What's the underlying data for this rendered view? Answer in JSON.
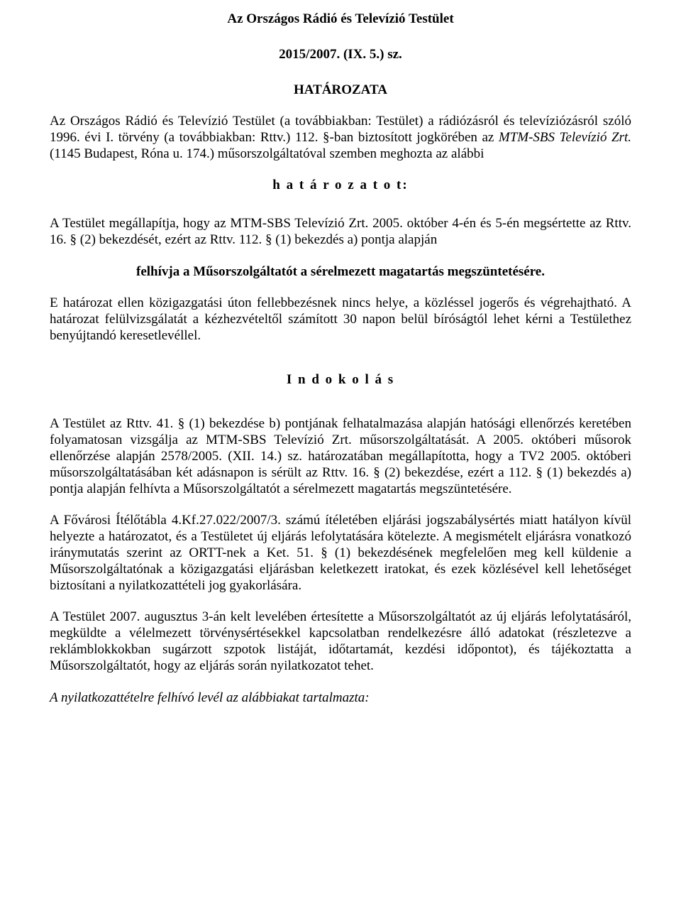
{
  "document": {
    "title": "Az Országos Rádió és Televízió Testület",
    "subtitle": "2015/2007. (IX. 5.) sz.",
    "hatarozata": "HATÁROZATA",
    "para1_part1": "Az Országos Rádió és Televízió Testület (a továbbiakban: Testület) a rádiózásról és televíziózásról szóló 1996. évi I. törvény (a továbbiakban: Rttv.) 112. §-ban biztosított jogkörében az ",
    "para1_italic": "MTM-SBS Televízió Zrt.",
    "para1_part2": " (1145 Budapest, Róna u. 174.) műsorszolgáltatóval szemben meghozta az alábbi",
    "hatarozatot": "h a t á r o z a t o t:",
    "para2": "A Testület megállapítja, hogy az MTM-SBS Televízió Zrt. 2005. október 4-én és 5-én megsértette az Rttv. 16. § (2) bekezdését, ezért az Rttv. 112. § (1) bekezdés a) pontja alapján",
    "felhivja": "felhívja a Műsorszolgáltatót a sérelmezett magatartás megszüntetésére.",
    "para3": "E határozat ellen közigazgatási úton fellebbezésnek nincs helye, a közléssel jogerős és végrehajtható. A határozat felülvizsgálatát a kézhezvételtől számított 30 napon belül bíróságtól lehet kérni a Testülethez benyújtandó keresetlevéllel.",
    "indokolas": "I n d o k o l á s",
    "para4": "A Testület az Rttv. 41. § (1) bekezdése b) pontjának felhatalmazása alapján hatósági ellenőrzés keretében folyamatosan vizsgálja az MTM-SBS Televízió Zrt. műsorszolgáltatását. A 2005. októberi műsorok ellenőrzése alapján 2578/2005. (XII. 14.) sz. határozatában megállapította, hogy a TV2 2005. októberi műsorszolgáltatásában két adásnapon is sérült az Rttv. 16. § (2) bekezdése, ezért a 112. § (1) bekezdés a) pontja alapján felhívta a Műsorszolgáltatót a sérelmezett magatartás megszüntetésére.",
    "para5": "A Fővárosi Ítélőtábla 4.Kf.27.022/2007/3. számú ítéletében eljárási jogszabálysértés miatt hatályon kívül helyezte a határozatot, és a Testületet új eljárás lefolytatására kötelezte. A megismételt eljárásra vonatkozó iránymutatás szerint az ORTT-nek a Ket. 51. § (1) bekezdésének megfelelően meg kell küldenie a Műsorszolgáltatónak a közigazgatási eljárásban keletkezett iratokat, és ezek közlésével kell lehetőséget biztosítani a nyilatkozattételi jog gyakorlására.",
    "para6": "A Testület 2007. augusztus 3-án kelt levelében értesítette a Műsorszolgáltatót az új eljárás lefolytatásáról, megküldte a vélelmezett törvénysértésekkel kapcsolatban rendelkezésre álló adatokat (részletezve a reklámblokkokban sugárzott szpotok listáját, időtartamát, kezdési időpontot), és tájékoztatta a Műsorszolgáltatót, hogy az eljárás során nyilatkozatot tehet.",
    "para7": "A nyilatkozattételre felhívó levél az alábbiakat tartalmazta:"
  },
  "styles": {
    "fontFamily": "Times New Roman",
    "fontSize": 19,
    "titleFontSize": 19,
    "backgroundColor": "#ffffff",
    "textColor": "#000000"
  }
}
